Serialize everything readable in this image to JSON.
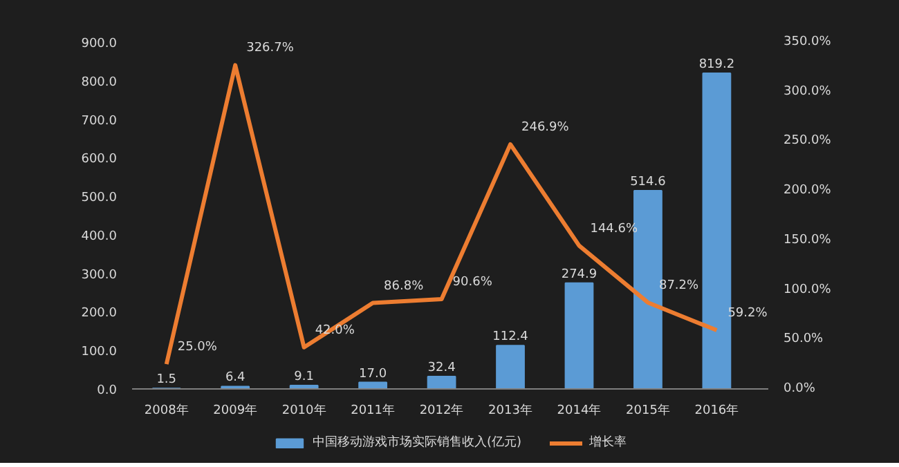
{
  "chart_data": {
    "type": "bar",
    "categories": [
      "2008年",
      "2009年",
      "2010年",
      "2011年",
      "2012年",
      "2013年",
      "2014年",
      "2015年",
      "2016年"
    ],
    "series": [
      {
        "name": "中国移动游戏市场实际销售收入(亿元)",
        "type": "bar",
        "color": "#5b9bd5",
        "values": [
          1.5,
          6.4,
          9.1,
          17.0,
          32.4,
          112.4,
          274.9,
          514.6,
          819.2
        ],
        "value_labels": [
          "1.5",
          "6.4",
          "9.1",
          "17.0",
          "32.4",
          "112.4",
          "274.9",
          "514.6",
          "819.2"
        ]
      },
      {
        "name": "增长率",
        "type": "line",
        "axis": "y2",
        "color": "#ed7d31",
        "values": [
          25.0,
          326.7,
          42.0,
          86.8,
          90.6,
          246.9,
          144.6,
          87.2,
          59.2
        ],
        "value_labels": [
          "25.0%",
          "326.7%",
          "42.0%",
          "86.8%",
          "90.6%",
          "246.9%",
          "144.6%",
          "87.2%",
          "59.2%"
        ]
      }
    ],
    "ylim": [
      0,
      900
    ],
    "yticks": [
      {
        "value": 0,
        "label": "0.0"
      },
      {
        "value": 100,
        "label": "100.0"
      },
      {
        "value": 200,
        "label": "200.0"
      },
      {
        "value": 300,
        "label": "300.0"
      },
      {
        "value": 400,
        "label": "400.0"
      },
      {
        "value": 500,
        "label": "500.0"
      },
      {
        "value": 600,
        "label": "600.0"
      },
      {
        "value": 700,
        "label": "700.0"
      },
      {
        "value": 800,
        "label": "800.0"
      },
      {
        "value": 900,
        "label": "900.0"
      }
    ],
    "y2lim": [
      0,
      350
    ],
    "y2ticks": [
      {
        "value": 0,
        "label": "0.0%"
      },
      {
        "value": 50,
        "label": "50.0%"
      },
      {
        "value": 100,
        "label": "100.0%"
      },
      {
        "value": 150,
        "label": "150.0%"
      },
      {
        "value": 200,
        "label": "200.0%"
      },
      {
        "value": 250,
        "label": "250.0%"
      },
      {
        "value": 300,
        "label": "300.0%"
      },
      {
        "value": 350,
        "label": "350.0%"
      }
    ],
    "grid": false,
    "legend": "bottom",
    "marker": "none"
  }
}
